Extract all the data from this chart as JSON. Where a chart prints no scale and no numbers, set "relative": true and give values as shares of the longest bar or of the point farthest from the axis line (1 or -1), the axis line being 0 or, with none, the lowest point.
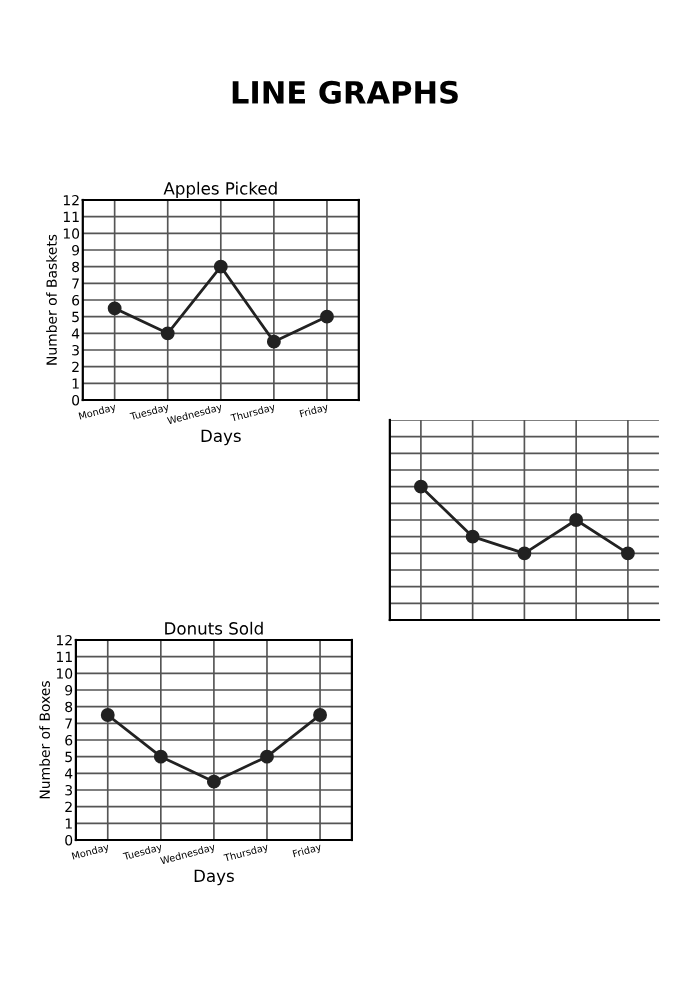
{
  "chart_data": [
    {
      "type": "line",
      "title": "Apples Picked",
      "xlabel": "Days",
      "ylabel": "Number of Baskets",
      "annotations": [
        "LINE GRAPHS"
      ],
      "categories": [
        "Monday",
        "Tuesday",
        "Wednesday",
        "Thursday",
        "Friday"
      ],
      "series": [
        {
          "color": "#222222",
          "values": [
            5.5,
            4,
            8,
            3.5,
            5
          ]
        }
      ],
      "ylim": [
        0,
        12
      ],
      "yticks": [
        0,
        1,
        2,
        3,
        4,
        5,
        6,
        7,
        8,
        9,
        10,
        11,
        12
      ],
      "grid": true,
      "marker": "circle",
      "line_style": "solid"
    },
    {
      "type": "line",
      "relative": true,
      "categories": [
        null,
        null,
        null,
        null,
        null
      ],
      "series": [
        {
          "color": "#222222",
          "values": [
            1,
            0.625,
            0.5,
            0.75,
            0.5
          ]
        }
      ],
      "grid": true,
      "marker": "circle",
      "line_style": "solid"
    },
    {
      "type": "line",
      "title": "Donuts Sold",
      "xlabel": "Days",
      "ylabel": "Number of Boxes",
      "categories": [
        "Monday",
        "Tuesday",
        "Wednesday",
        "Thursday",
        "Friday"
      ],
      "series": [
        {
          "color": "#222222",
          "values": [
            7.5,
            5,
            3.5,
            5,
            7.5
          ]
        }
      ],
      "ylim": [
        0,
        12
      ],
      "yticks": [
        0,
        1,
        2,
        3,
        4,
        5,
        6,
        7,
        8,
        9,
        10,
        11,
        12
      ],
      "grid": true,
      "marker": "circle",
      "line_style": "solid"
    }
  ]
}
